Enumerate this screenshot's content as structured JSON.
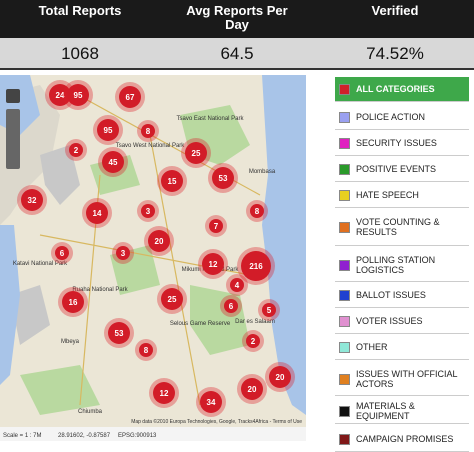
{
  "stats": [
    {
      "label": "Total Reports",
      "value": "1068"
    },
    {
      "label": "Avg Reports Per Day",
      "value": "64.5"
    },
    {
      "label": "Verified",
      "value": "74.52%"
    }
  ],
  "map": {
    "markers": [
      24,
      95,
      67,
      95,
      8,
      2,
      45,
      25,
      15,
      53,
      32,
      14,
      3,
      8,
      7,
      20,
      6,
      3,
      12,
      216,
      4,
      16,
      25,
      6,
      5,
      53,
      8,
      2,
      12,
      34,
      20,
      20
    ],
    "places": [
      "Tsavo East National Park",
      "Tsavo West National Park",
      "Mombasa",
      "Ruaha National Park",
      "Mikumi National Park",
      "Selous Game Reserve",
      "Katavi National Park",
      "Dar es Salaam",
      "Mbeya",
      "Chiumba"
    ],
    "attribution": "Map data ©2010 Europa Technologies, Google, Tracks4Africa - Terms of Use",
    "status": [
      "Scale = 1 : 7M",
      "28.91602, -0.87587",
      "EPSG:900913"
    ]
  },
  "categories": [
    {
      "label": "ALL CATEGORIES",
      "color": "#d0202a"
    },
    {
      "label": "POLICE ACTION",
      "color": "#9aa0f0"
    },
    {
      "label": "SECURITY ISSUES",
      "color": "#e020c0"
    },
    {
      "label": "POSITIVE EVENTS",
      "color": "#2a9a2a"
    },
    {
      "label": "HATE SPEECH",
      "color": "#e8d020"
    },
    {
      "label": "VOTE COUNTING & RESULTS",
      "color": "#e07020"
    },
    {
      "label": "POLLING STATION LOGISTICS",
      "color": "#9020d0"
    },
    {
      "label": "BALLOT ISSUES",
      "color": "#2040d0"
    },
    {
      "label": "VOTER ISSUES",
      "color": "#e090d0"
    },
    {
      "label": "OTHER",
      "color": "#90e8d8"
    },
    {
      "label": "ISSUES WITH OFFICIAL ACTORS",
      "color": "#e08020"
    },
    {
      "label": "MATERIALS & EQUIPMENT",
      "color": "#101010"
    },
    {
      "label": "CAMPAIGN PROMISES",
      "color": "#801818"
    }
  ]
}
